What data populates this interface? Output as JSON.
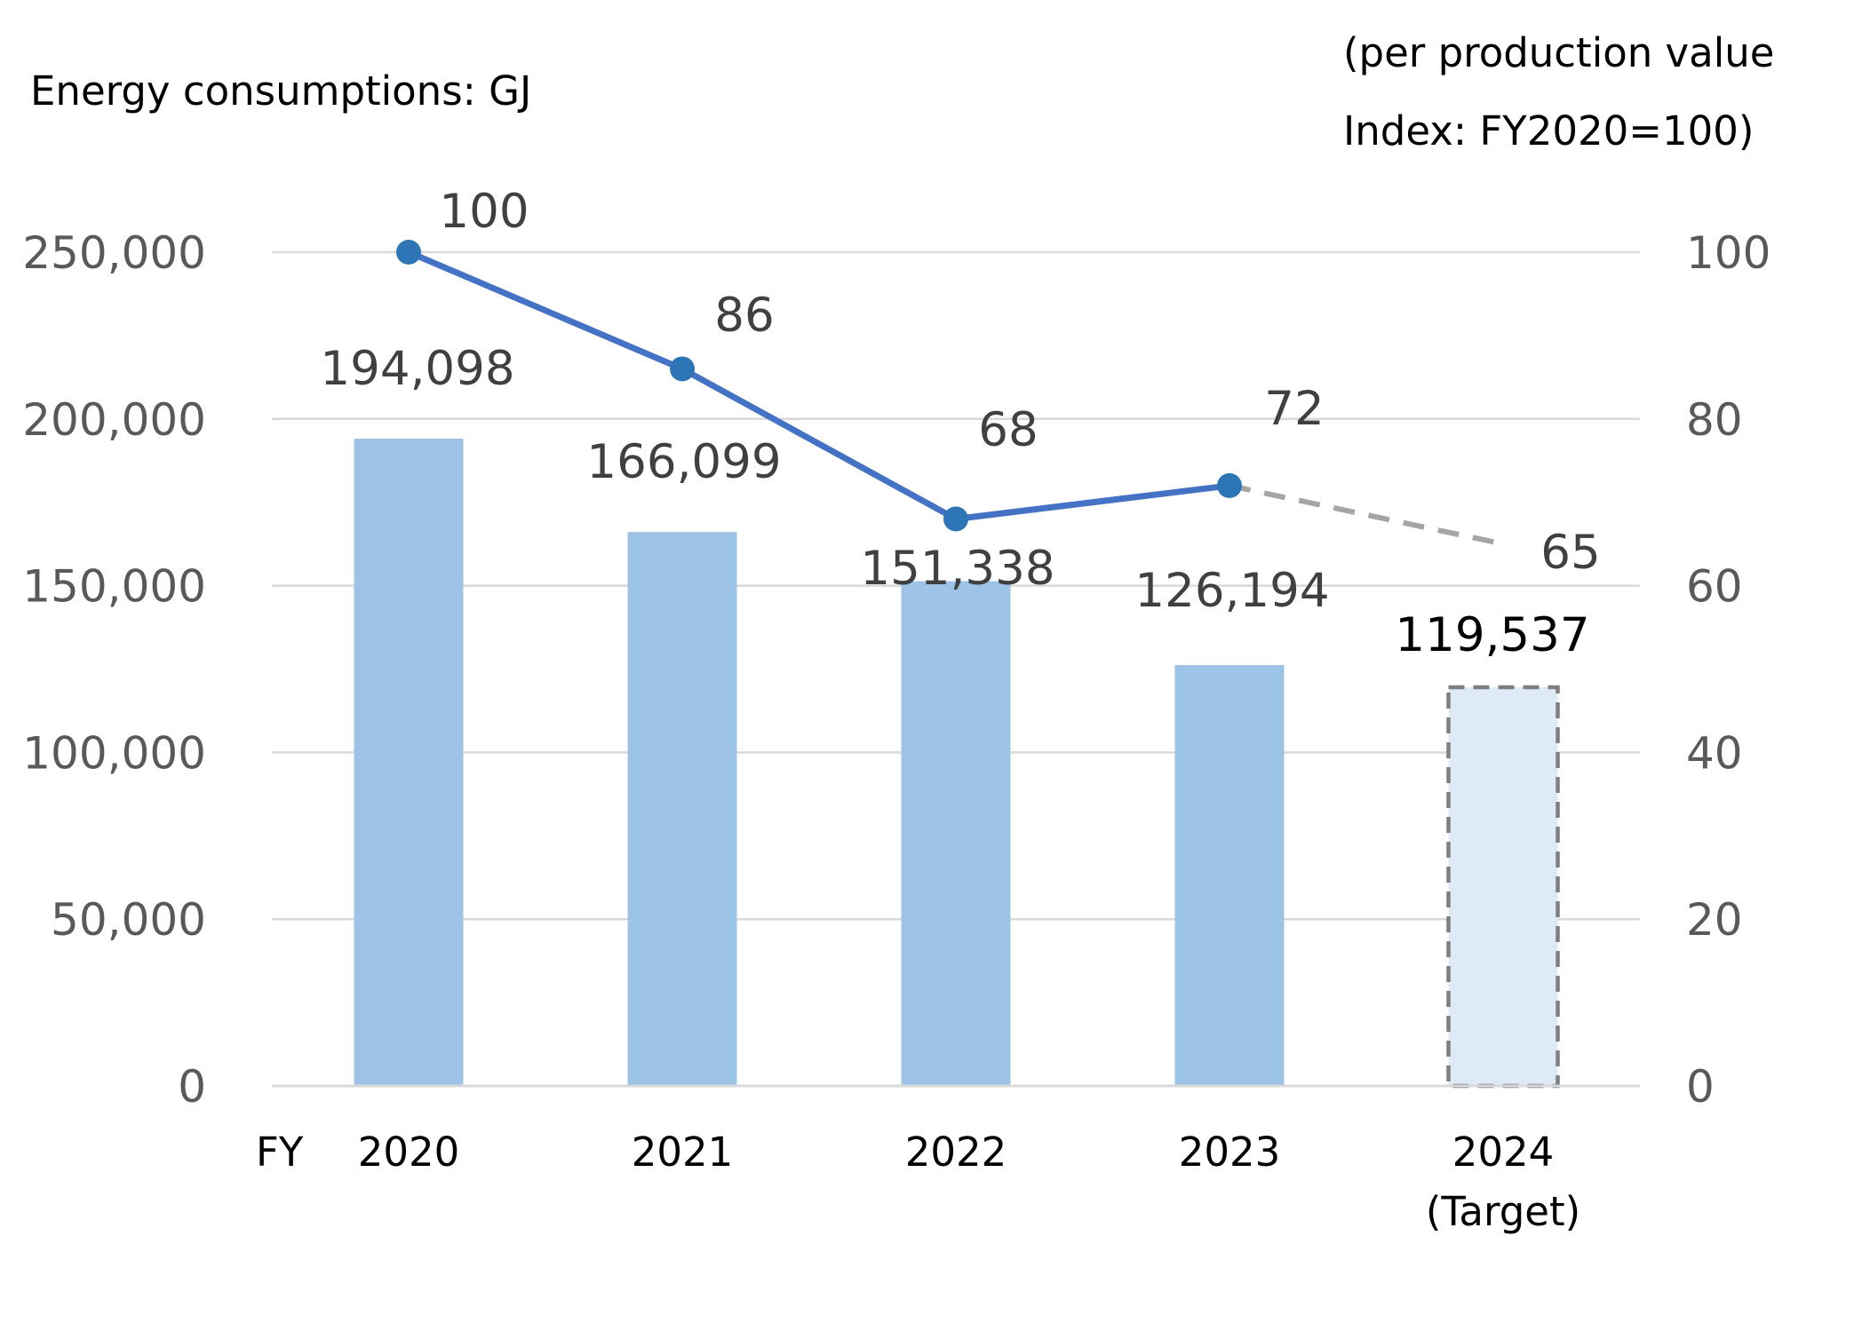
{
  "chart_data": {
    "type": "bar",
    "left_axis_title": "Energy consumptions: GJ",
    "right_axis_title_lines": [
      "(per production value",
      "Index: FY2020=100)"
    ],
    "x_prefix": "FY",
    "categories": [
      "2020",
      "2021",
      "2022",
      "2023",
      "2024"
    ],
    "category_sublabels": [
      "",
      "",
      "",
      "",
      "(Target)"
    ],
    "bars": {
      "values": [
        194098,
        166099,
        151338,
        126194,
        119537
      ],
      "labels": [
        "194,098",
        "166,099",
        "151,338",
        "126,194",
        "119,537"
      ],
      "target_index": 4,
      "color": "#9dc3e6",
      "target_fill": "#deebf7",
      "target_border": "#7f7f7f"
    },
    "line": {
      "values": [
        100,
        86,
        68,
        72,
        65
      ],
      "labels": [
        "100",
        "86",
        "68",
        "72",
        "65"
      ],
      "color": "#4472c4",
      "marker_color": "#2e75b6",
      "target_color": "#a5a5a5"
    },
    "y_left": {
      "min": 0,
      "max": 250000,
      "ticks": [
        "0",
        "50,000",
        "100,000",
        "150,000",
        "200,000",
        "250,000"
      ]
    },
    "y_right": {
      "min": 0,
      "max": 100,
      "ticks": [
        "0",
        "20",
        "40",
        "60",
        "80",
        "100"
      ]
    },
    "grid": true,
    "grid_color": "#d9d9d9"
  }
}
